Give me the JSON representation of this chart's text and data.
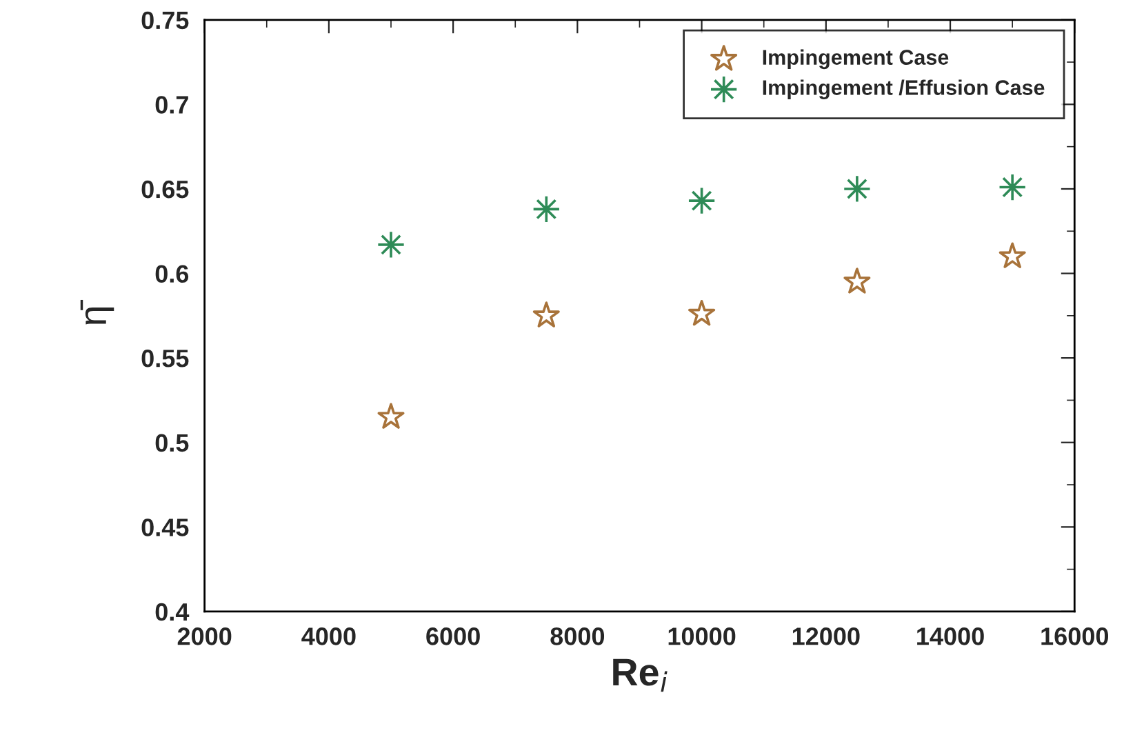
{
  "chart_data": {
    "type": "scatter",
    "xlabel": "Re$_{i}$",
    "ylabel": "η̄",
    "xlim": [
      2000,
      16000
    ],
    "xticks": [
      2000,
      4000,
      6000,
      8000,
      10000,
      12000,
      14000,
      16000
    ],
    "ylim": [
      0.4,
      0.75
    ],
    "yticks": [
      0.4,
      0.45,
      0.5,
      0.55,
      0.6,
      0.65,
      0.7,
      0.75
    ],
    "grid": false,
    "legend": "top right",
    "series": [
      {
        "name": "Impingement Case",
        "color": "#a8733a",
        "marker": "star",
        "x": [
          5000,
          7500,
          10000,
          12500,
          15000
        ],
        "values": [
          0.515,
          0.575,
          0.576,
          0.595,
          0.61
        ]
      },
      {
        "name": "Impingement /Effusion Case",
        "color": "#2e8b57",
        "marker": "cross",
        "x": [
          5000,
          7500,
          10000,
          12500,
          15000
        ],
        "values": [
          0.617,
          0.638,
          0.643,
          0.65,
          0.651
        ]
      }
    ]
  }
}
